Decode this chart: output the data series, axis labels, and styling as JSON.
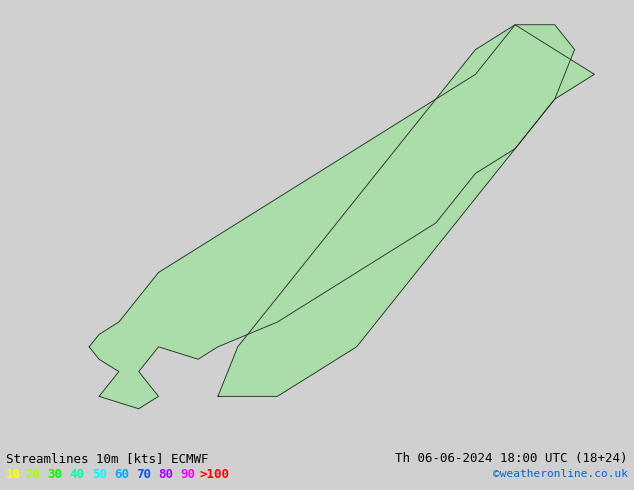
{
  "title_left": "Streamlines 10m [kts] ECMWF",
  "title_right": "Th 06-06-2024 18:00 UTC (18+24)",
  "copyright": "©weatheronline.co.uk",
  "legend_values": [
    "10",
    "20",
    "30",
    "40",
    "50",
    "60",
    "70",
    "80",
    "90",
    ">100"
  ],
  "legend_colors": [
    "#ffff00",
    "#aaff00",
    "#00ff00",
    "#00ffaa",
    "#00ffff",
    "#00aaff",
    "#0055ff",
    "#aa00ff",
    "#ff00ff",
    "#ff0000"
  ],
  "bg_color": "#d0d0d0",
  "land_color": "#aaddaa",
  "sea_color": "#d0d0d0",
  "coast_color": "#222222",
  "text_color": "#000000",
  "title_fontsize": 9,
  "legend_fontsize": 9,
  "fig_width": 6.34,
  "fig_height": 4.9,
  "dpi": 100,
  "extent": [
    0.0,
    32.0,
    54.0,
    72.0
  ]
}
